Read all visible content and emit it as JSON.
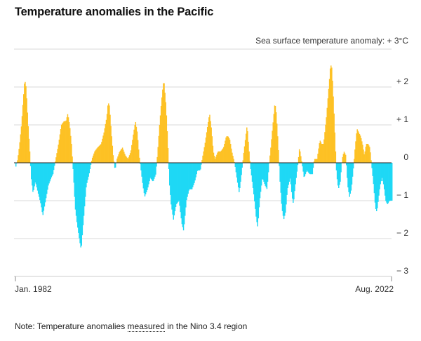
{
  "title": "Temperature anomalies in the Pacific",
  "note": {
    "prefix": "Note: Temperature anomalies ",
    "underlined": "measured",
    "suffix": " in the Nino 3.4 region"
  },
  "colors": {
    "positive": "#fdc125",
    "negative": "#1ed8f5",
    "zero_line": "#222222",
    "grid": "#d9d9d9"
  },
  "chart_data": {
    "type": "bar",
    "title": "Temperature anomalies in the Pacific",
    "ylabel": "Sea surface temperature anomaly: + 3°C",
    "ylim": [
      -3,
      3
    ],
    "yticks": [
      {
        "value": 3,
        "label": "Sea surface temperature anomaly: + 3°C"
      },
      {
        "value": 2,
        "label": "+ 2"
      },
      {
        "value": 1,
        "label": "+ 1"
      },
      {
        "value": 0,
        "label": "0"
      },
      {
        "value": -1,
        "label": "− 1"
      },
      {
        "value": -2,
        "label": "− 2"
      },
      {
        "value": -3,
        "label": "− 3"
      }
    ],
    "xlabels": {
      "start": "Jan. 1982",
      "end": "Aug. 2022"
    },
    "x_start": 1982.0,
    "x_end": 2022.58,
    "series_resolution": "monthly",
    "anchors": [
      [
        1982.0,
        -0.1
      ],
      [
        1982.2,
        0.1
      ],
      [
        1982.4,
        0.5
      ],
      [
        1982.6,
        1.0
      ],
      [
        1982.8,
        1.7
      ],
      [
        1982.95,
        2.2
      ],
      [
        1983.1,
        2.0
      ],
      [
        1983.3,
        1.1
      ],
      [
        1983.5,
        0.3
      ],
      [
        1983.65,
        -0.4
      ],
      [
        1983.85,
        -0.8
      ],
      [
        1984.1,
        -0.5
      ],
      [
        1984.4,
        -0.8
      ],
      [
        1984.7,
        -1.1
      ],
      [
        1984.9,
        -1.4
      ],
      [
        1985.2,
        -1.0
      ],
      [
        1985.5,
        -0.6
      ],
      [
        1985.8,
        -0.4
      ],
      [
        1986.0,
        -0.3
      ],
      [
        1986.3,
        0.1
      ],
      [
        1986.6,
        0.5
      ],
      [
        1986.9,
        1.0
      ],
      [
        1987.2,
        1.1
      ],
      [
        1987.4,
        1.1
      ],
      [
        1987.6,
        1.3
      ],
      [
        1987.8,
        1.0
      ],
      [
        1988.0,
        0.5
      ],
      [
        1988.2,
        -0.3
      ],
      [
        1988.4,
        -1.2
      ],
      [
        1988.6,
        -1.6
      ],
      [
        1988.9,
        -2.1
      ],
      [
        1989.05,
        -2.3
      ],
      [
        1989.2,
        -1.8
      ],
      [
        1989.4,
        -1.2
      ],
      [
        1989.6,
        -0.6
      ],
      [
        1989.9,
        -0.3
      ],
      [
        1990.2,
        0.1
      ],
      [
        1990.5,
        0.3
      ],
      [
        1990.8,
        0.4
      ],
      [
        1991.2,
        0.5
      ],
      [
        1991.5,
        0.8
      ],
      [
        1991.8,
        1.2
      ],
      [
        1991.95,
        1.6
      ],
      [
        1992.1,
        1.5
      ],
      [
        1992.3,
        0.8
      ],
      [
        1992.5,
        0.2
      ],
      [
        1992.7,
        -0.2
      ],
      [
        1992.9,
        0.1
      ],
      [
        1993.2,
        0.3
      ],
      [
        1993.5,
        0.4
      ],
      [
        1993.8,
        0.2
      ],
      [
        1994.1,
        0.1
      ],
      [
        1994.4,
        0.3
      ],
      [
        1994.7,
        0.8
      ],
      [
        1994.9,
        1.1
      ],
      [
        1995.1,
        0.8
      ],
      [
        1995.3,
        0.2
      ],
      [
        1995.5,
        -0.2
      ],
      [
        1995.7,
        -0.6
      ],
      [
        1995.9,
        -0.9
      ],
      [
        1996.2,
        -0.7
      ],
      [
        1996.5,
        -0.4
      ],
      [
        1996.8,
        -0.5
      ],
      [
        1997.1,
        -0.3
      ],
      [
        1997.3,
        0.3
      ],
      [
        1997.5,
        1.0
      ],
      [
        1997.7,
        1.6
      ],
      [
        1997.9,
        2.1
      ],
      [
        1998.0,
        2.1
      ],
      [
        1998.2,
        1.5
      ],
      [
        1998.4,
        0.5
      ],
      [
        1998.55,
        -0.5
      ],
      [
        1998.75,
        -1.1
      ],
      [
        1999.0,
        -1.5
      ],
      [
        1999.3,
        -1.1
      ],
      [
        1999.6,
        -1.0
      ],
      [
        1999.9,
        -1.6
      ],
      [
        2000.1,
        -1.8
      ],
      [
        2000.4,
        -1.0
      ],
      [
        2000.7,
        -0.7
      ],
      [
        2001.0,
        -0.7
      ],
      [
        2001.3,
        -0.5
      ],
      [
        2001.6,
        -0.2
      ],
      [
        2001.9,
        -0.2
      ],
      [
        2002.1,
        0.1
      ],
      [
        2002.4,
        0.5
      ],
      [
        2002.7,
        1.0
      ],
      [
        2002.9,
        1.3
      ],
      [
        2003.1,
        0.9
      ],
      [
        2003.3,
        0.3
      ],
      [
        2003.5,
        0.1
      ],
      [
        2003.8,
        0.3
      ],
      [
        2004.1,
        0.3
      ],
      [
        2004.4,
        0.4
      ],
      [
        2004.7,
        0.7
      ],
      [
        2004.9,
        0.7
      ],
      [
        2005.1,
        0.6
      ],
      [
        2005.3,
        0.3
      ],
      [
        2005.6,
        0.0
      ],
      [
        2005.9,
        -0.5
      ],
      [
        2006.1,
        -0.8
      ],
      [
        2006.3,
        -0.4
      ],
      [
        2006.6,
        0.3
      ],
      [
        2006.8,
        0.7
      ],
      [
        2006.95,
        1.0
      ],
      [
        2007.1,
        0.5
      ],
      [
        2007.3,
        -0.1
      ],
      [
        2007.5,
        -0.5
      ],
      [
        2007.7,
        -0.9
      ],
      [
        2007.95,
        -1.5
      ],
      [
        2008.1,
        -1.7
      ],
      [
        2008.3,
        -1.0
      ],
      [
        2008.6,
        -0.4
      ],
      [
        2008.9,
        -0.6
      ],
      [
        2009.1,
        -0.7
      ],
      [
        2009.3,
        -0.1
      ],
      [
        2009.5,
        0.4
      ],
      [
        2009.8,
        1.2
      ],
      [
        2009.95,
        1.6
      ],
      [
        2010.1,
        1.3
      ],
      [
        2010.3,
        0.5
      ],
      [
        2010.5,
        -0.5
      ],
      [
        2010.7,
        -1.2
      ],
      [
        2010.9,
        -1.5
      ],
      [
        2011.1,
        -1.3
      ],
      [
        2011.3,
        -0.7
      ],
      [
        2011.6,
        -0.4
      ],
      [
        2011.8,
        -0.9
      ],
      [
        2011.95,
        -1.1
      ],
      [
        2012.1,
        -0.7
      ],
      [
        2012.4,
        -0.1
      ],
      [
        2012.6,
        0.4
      ],
      [
        2012.8,
        0.1
      ],
      [
        2013.1,
        -0.4
      ],
      [
        2013.4,
        -0.2
      ],
      [
        2013.7,
        -0.3
      ],
      [
        2014.0,
        -0.3
      ],
      [
        2014.2,
        0.1
      ],
      [
        2014.5,
        0.1
      ],
      [
        2014.8,
        0.6
      ],
      [
        2015.0,
        0.5
      ],
      [
        2015.2,
        0.5
      ],
      [
        2015.5,
        1.2
      ],
      [
        2015.8,
        2.1
      ],
      [
        2015.95,
        2.6
      ],
      [
        2016.1,
        2.5
      ],
      [
        2016.3,
        1.5
      ],
      [
        2016.5,
        0.3
      ],
      [
        2016.6,
        -0.3
      ],
      [
        2016.8,
        -0.7
      ],
      [
        2017.0,
        -0.5
      ],
      [
        2017.2,
        0.1
      ],
      [
        2017.4,
        0.3
      ],
      [
        2017.6,
        0.2
      ],
      [
        2017.8,
        -0.6
      ],
      [
        2018.0,
        -0.9
      ],
      [
        2018.2,
        -0.7
      ],
      [
        2018.4,
        -0.2
      ],
      [
        2018.6,
        0.4
      ],
      [
        2018.8,
        0.9
      ],
      [
        2019.0,
        0.8
      ],
      [
        2019.2,
        0.7
      ],
      [
        2019.4,
        0.5
      ],
      [
        2019.6,
        0.2
      ],
      [
        2019.8,
        0.5
      ],
      [
        2020.0,
        0.5
      ],
      [
        2020.2,
        0.4
      ],
      [
        2020.4,
        -0.1
      ],
      [
        2020.6,
        -0.6
      ],
      [
        2020.8,
        -1.2
      ],
      [
        2020.95,
        -1.3
      ],
      [
        2021.1,
        -1.0
      ],
      [
        2021.3,
        -0.6
      ],
      [
        2021.5,
        -0.4
      ],
      [
        2021.7,
        -0.6
      ],
      [
        2021.9,
        -1.0
      ],
      [
        2022.1,
        -1.1
      ],
      [
        2022.3,
        -1.0
      ],
      [
        2022.58,
        -1.0
      ]
    ]
  }
}
